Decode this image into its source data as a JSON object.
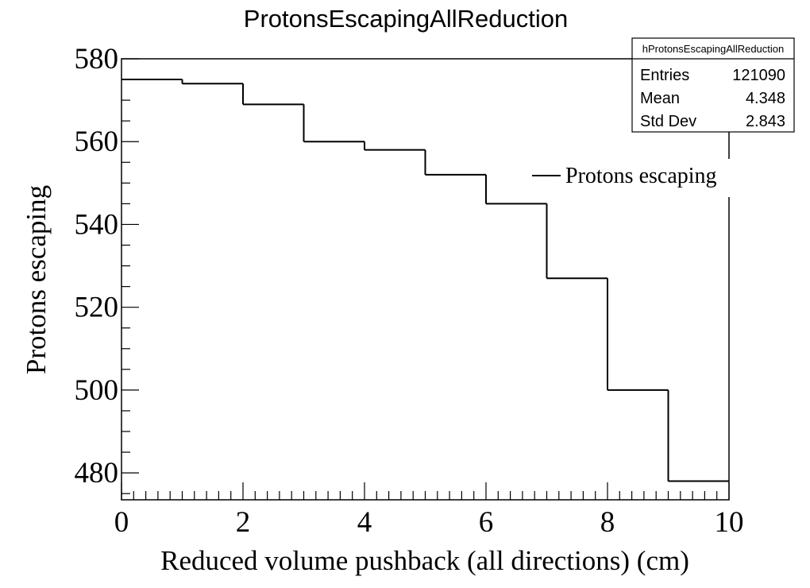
{
  "chart_data": {
    "type": "line",
    "title": "ProtonsEscapingAllReduction",
    "xlabel": "Reduced volume pushback (all directions) (cm)",
    "ylabel": "Protons escaping",
    "xlim": [
      0,
      10
    ],
    "ylim": [
      473.5,
      580
    ],
    "x_ticks": [
      0,
      2,
      4,
      6,
      8,
      10
    ],
    "y_ticks": [
      480,
      500,
      520,
      540,
      560,
      580
    ],
    "bin_edges": [
      0,
      1,
      2,
      3,
      4,
      5,
      6,
      7,
      8,
      9,
      10
    ],
    "series": [
      {
        "name": "Protons escaping",
        "values": [
          575,
          574,
          569,
          560,
          558,
          552,
          545,
          527,
          500,
          478
        ]
      }
    ],
    "grid": false,
    "legend_position": "top-right",
    "stats_box": {
      "name": "hProtonsEscapingAllReduction",
      "rows": [
        {
          "label": "Entries",
          "value": "121090"
        },
        {
          "label": "Mean",
          "value": "4.348"
        },
        {
          "label": "Std Dev",
          "value": "2.843"
        }
      ]
    },
    "colors": {
      "line": "#000000",
      "background": "#ffffff"
    }
  }
}
